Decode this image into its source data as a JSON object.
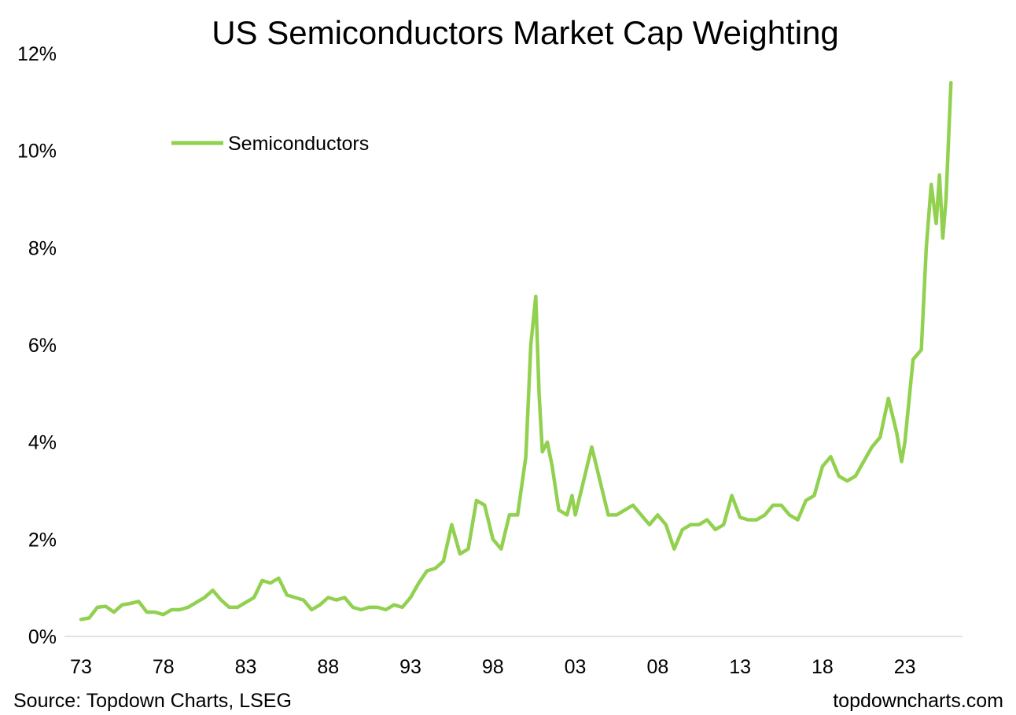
{
  "chart_data": {
    "type": "line",
    "title": "US Semiconductors Market Cap Weighting",
    "xlabel": "",
    "ylabel": "",
    "ylim": [
      0,
      12
    ],
    "y_ticks": [
      "0%",
      "2%",
      "4%",
      "6%",
      "8%",
      "10%",
      "12%"
    ],
    "x_ticks": [
      "73",
      "78",
      "83",
      "88",
      "93",
      "98",
      "03",
      "08",
      "13",
      "18",
      "23"
    ],
    "legend_placement": "top-left",
    "grid": false,
    "series": [
      {
        "name": "Semiconductors",
        "color": "#92d050",
        "x": [
          1973.0,
          1973.5,
          1974.0,
          1974.5,
          1975.0,
          1975.5,
          1976.0,
          1976.5,
          1977.0,
          1977.5,
          1978.0,
          1978.5,
          1979.0,
          1979.5,
          1980.0,
          1980.5,
          1981.0,
          1981.5,
          1982.0,
          1982.5,
          1983.0,
          1983.5,
          1984.0,
          1984.5,
          1985.0,
          1985.5,
          1986.0,
          1986.5,
          1987.0,
          1987.5,
          1988.0,
          1988.5,
          1989.0,
          1989.5,
          1990.0,
          1990.5,
          1991.0,
          1991.5,
          1992.0,
          1992.5,
          1993.0,
          1993.5,
          1994.0,
          1994.5,
          1995.0,
          1995.5,
          1996.0,
          1996.5,
          1997.0,
          1997.5,
          1998.0,
          1998.5,
          1999.0,
          1999.5,
          2000.0,
          2000.3,
          2000.6,
          2000.8,
          2001.0,
          2001.3,
          2001.6,
          2002.0,
          2002.5,
          2002.8,
          2003.0,
          2003.5,
          2004.0,
          2004.5,
          2005.0,
          2005.5,
          2006.0,
          2006.5,
          2007.0,
          2007.5,
          2008.0,
          2008.5,
          2009.0,
          2009.5,
          2010.0,
          2010.5,
          2011.0,
          2011.5,
          2012.0,
          2012.5,
          2013.0,
          2013.5,
          2014.0,
          2014.5,
          2015.0,
          2015.5,
          2016.0,
          2016.5,
          2017.0,
          2017.5,
          2018.0,
          2018.5,
          2019.0,
          2019.5,
          2020.0,
          2020.5,
          2021.0,
          2021.5,
          2022.0,
          2022.5,
          2022.8,
          2023.0,
          2023.5,
          2024.0,
          2024.3,
          2024.6,
          2024.9,
          2025.1,
          2025.3,
          2025.5,
          2025.8
        ],
        "values": [
          0.35,
          0.38,
          0.6,
          0.62,
          0.5,
          0.65,
          0.68,
          0.72,
          0.5,
          0.5,
          0.45,
          0.55,
          0.55,
          0.6,
          0.7,
          0.8,
          0.95,
          0.75,
          0.6,
          0.6,
          0.7,
          0.8,
          1.15,
          1.1,
          1.2,
          0.85,
          0.8,
          0.75,
          0.55,
          0.65,
          0.8,
          0.75,
          0.8,
          0.6,
          0.55,
          0.6,
          0.6,
          0.55,
          0.65,
          0.6,
          0.8,
          1.1,
          1.35,
          1.4,
          1.55,
          2.3,
          1.7,
          1.8,
          2.8,
          2.7,
          2.0,
          1.8,
          2.5,
          2.5,
          3.7,
          6.0,
          7.0,
          5.0,
          3.8,
          4.0,
          3.5,
          2.6,
          2.5,
          2.9,
          2.5,
          3.2,
          3.9,
          3.2,
          2.5,
          2.5,
          2.6,
          2.7,
          2.5,
          2.3,
          2.5,
          2.3,
          1.8,
          2.2,
          2.3,
          2.3,
          2.4,
          2.2,
          2.3,
          2.9,
          2.45,
          2.4,
          2.4,
          2.5,
          2.7,
          2.7,
          2.5,
          2.4,
          2.8,
          2.9,
          3.5,
          3.7,
          3.3,
          3.2,
          3.3,
          3.6,
          3.9,
          4.1,
          4.9,
          4.2,
          3.6,
          4.0,
          5.7,
          5.9,
          8.0,
          9.3,
          8.5,
          9.5,
          8.2,
          9.0,
          11.4
        ]
      }
    ]
  },
  "footer": {
    "source": "Source: Topdown Charts, LSEG",
    "brand": "topdowncharts.com"
  }
}
